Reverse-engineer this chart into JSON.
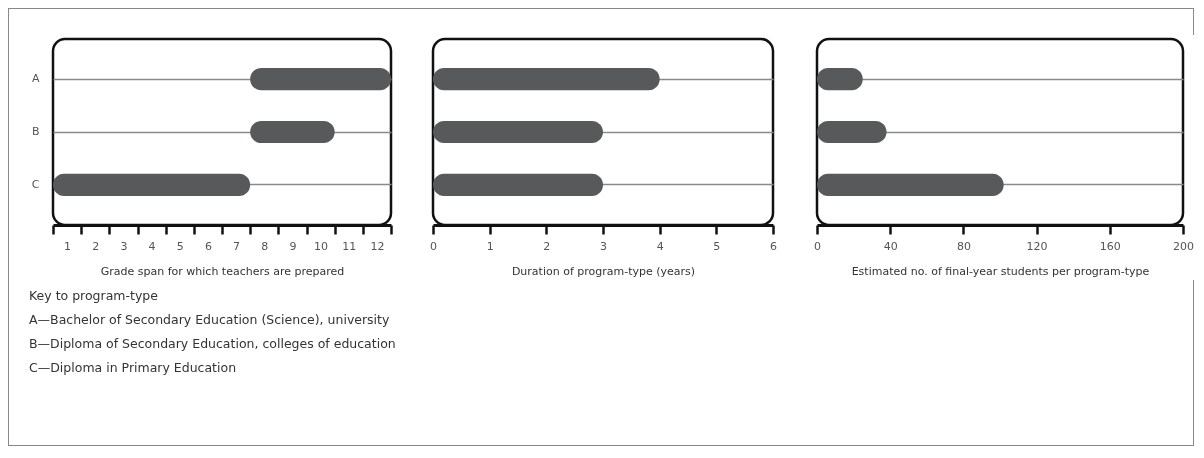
{
  "chart_data": [
    {
      "type": "bar",
      "orientation": "horizontal",
      "categories": [
        "A",
        "B",
        "C"
      ],
      "base": [
        7.5,
        7.5,
        0.5
      ],
      "values": [
        5,
        3,
        7
      ],
      "color": "#58595b",
      "xlim": [
        0.5,
        12.5
      ],
      "xticks": [
        {
          "value": 0.5,
          "label": null
        },
        1,
        {
          "value": 1.5,
          "label": null
        },
        2,
        {
          "value": 2.5,
          "label": null
        },
        3,
        {
          "value": 3.5,
          "label": null
        },
        4,
        {
          "value": 4.5,
          "label": null
        },
        5,
        {
          "value": 5.5,
          "label": null
        },
        6,
        {
          "value": 6.5,
          "label": null
        },
        7,
        {
          "value": 7.5,
          "label": null
        },
        8,
        {
          "value": 8.5,
          "label": null
        },
        9,
        {
          "value": 9.5,
          "label": null
        },
        10,
        {
          "value": 10.5,
          "label": null
        },
        11,
        {
          "value": 11.5,
          "label": null
        },
        12,
        {
          "value": 12.5,
          "label": null
        }
      ],
      "xlabel": "Grade span for which teachers are prepared",
      "grid": "y",
      "annotations": [
        "Key to program-type",
        "A—Bachelor of Secondary Education (Science), university",
        "B—Diploma of Secondary Education, colleges of education",
        "C—Diploma in Primary Education"
      ]
    },
    {
      "type": "bar",
      "orientation": "horizontal",
      "categories": [
        null,
        null,
        null
      ],
      "values": [
        4,
        3,
        3
      ],
      "color": "#58595b",
      "xlim": [
        0,
        6
      ],
      "xticks": [
        0,
        1,
        2,
        3,
        4,
        5,
        6
      ],
      "xlabel": "Duration of program-type (years)",
      "grid": "y",
      "tick_labels": "x"
    },
    {
      "type": "bar",
      "orientation": "horizontal",
      "categories": [
        null,
        null,
        null
      ],
      "values": [
        25,
        38,
        102
      ],
      "color": "#58595b",
      "xlim": [
        0,
        200
      ],
      "xticks": [
        0,
        40,
        80,
        120,
        160,
        200
      ],
      "xlabel": "Estimated no. of final-year students per program-type",
      "grid": "y",
      "tick_labels": "x"
    }
  ]
}
